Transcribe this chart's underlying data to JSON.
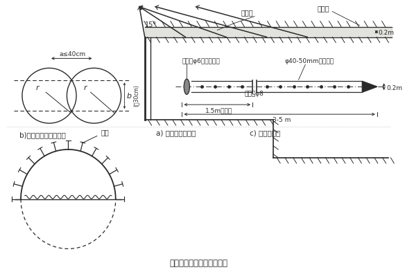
{
  "bg_color": "#ffffff",
  "line_color": "#2a2a2a",
  "title": "超前小导管注浆预加固围岩",
  "label_a": "a) 超前小导管布置",
  "label_b": "b)注浆半径及孔距选择",
  "label_c": "c) 小导管全图",
  "text_zuankong": "钒孔",
  "text_xiaodaoguan": "小导管",
  "text_gangzhipei": "钉支撑",
  "text_02m_a": "0.2m",
  "text_15deg": "15°",
  "text_a40": "a≤40cm",
  "text_b30": "(至30cm)",
  "text_b_label": "b",
  "text_r1": "r",
  "text_r2": "r",
  "text_guangu": "管箕（φ6钉筋加焊）",
  "text_youfeng": "φ40-50mm有缝钉管",
  "text_chujia": "出浆孔φ8",
  "text_bukong": "1.5m不钒孔",
  "text_35m": "3-5 m",
  "text_02m_c": "0.2m"
}
